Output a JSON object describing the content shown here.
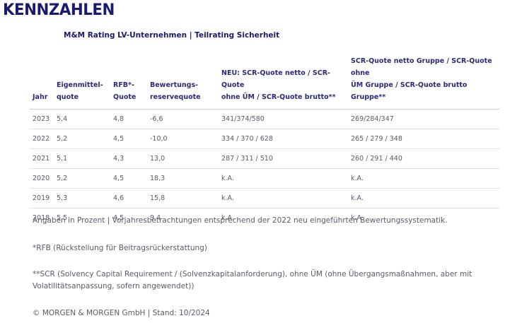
{
  "title": "KENNZAHLEN",
  "subtitle": "M&M Rating LV-Unternehmen | Teilrating Sicherheit",
  "table": {
    "headers": [
      "Jahr",
      "Eigenmittel-\nquote",
      "RFB*-\nQuote",
      "Bewertungs-\nreservequote",
      "NEU: SCR-Quote netto / SCR-Quote\nohne ÜM / SCR-Quote brutto**",
      "SCR-Quote netto Gruppe / SCR-Quote ohne\nÜM Gruppe / SCR-Quote brutto Gruppe**"
    ],
    "rows": [
      [
        "2023",
        "5,4",
        "4,8",
        "-6,6",
        "341/374/580",
        "269/284/347"
      ],
      [
        "2022",
        "5,2",
        "4,5",
        "-10,0",
        "334 / 370 / 628",
        "265 / 279 / 348"
      ],
      [
        "2021",
        "5,1",
        "4,3",
        "13,0",
        "287 / 311 / 510",
        "260 / 291 / 440"
      ],
      [
        "2020",
        "5,2",
        "4,5",
        "18,3",
        "k.A.",
        "k.A."
      ],
      [
        "2019",
        "5,3",
        "4,6",
        "15,8",
        "k.A.",
        "k.A."
      ],
      [
        "2018",
        "5,5",
        "4,5",
        "9,4",
        "k.A.",
        "k.A."
      ]
    ]
  },
  "notes": {
    "note1": "Angaben in Prozent | Vorjahresbetrachtungen entsprechend der 2022 neu eingeführten Bewertungssystematik.",
    "note2": "*RFB (Rückstellung für Beitragsrückerstattung)",
    "note3": "**SCR (Solvency Capital Requirement / (Solvenzkapitalanforderung), ohne ÜM (ohne Übergangsmaßnahmen, aber mit Volatilitätsanpassung, sofern angewendet))",
    "copyright": "© MORGEN & MORGEN GmbH | Stand: 10/2024"
  }
}
